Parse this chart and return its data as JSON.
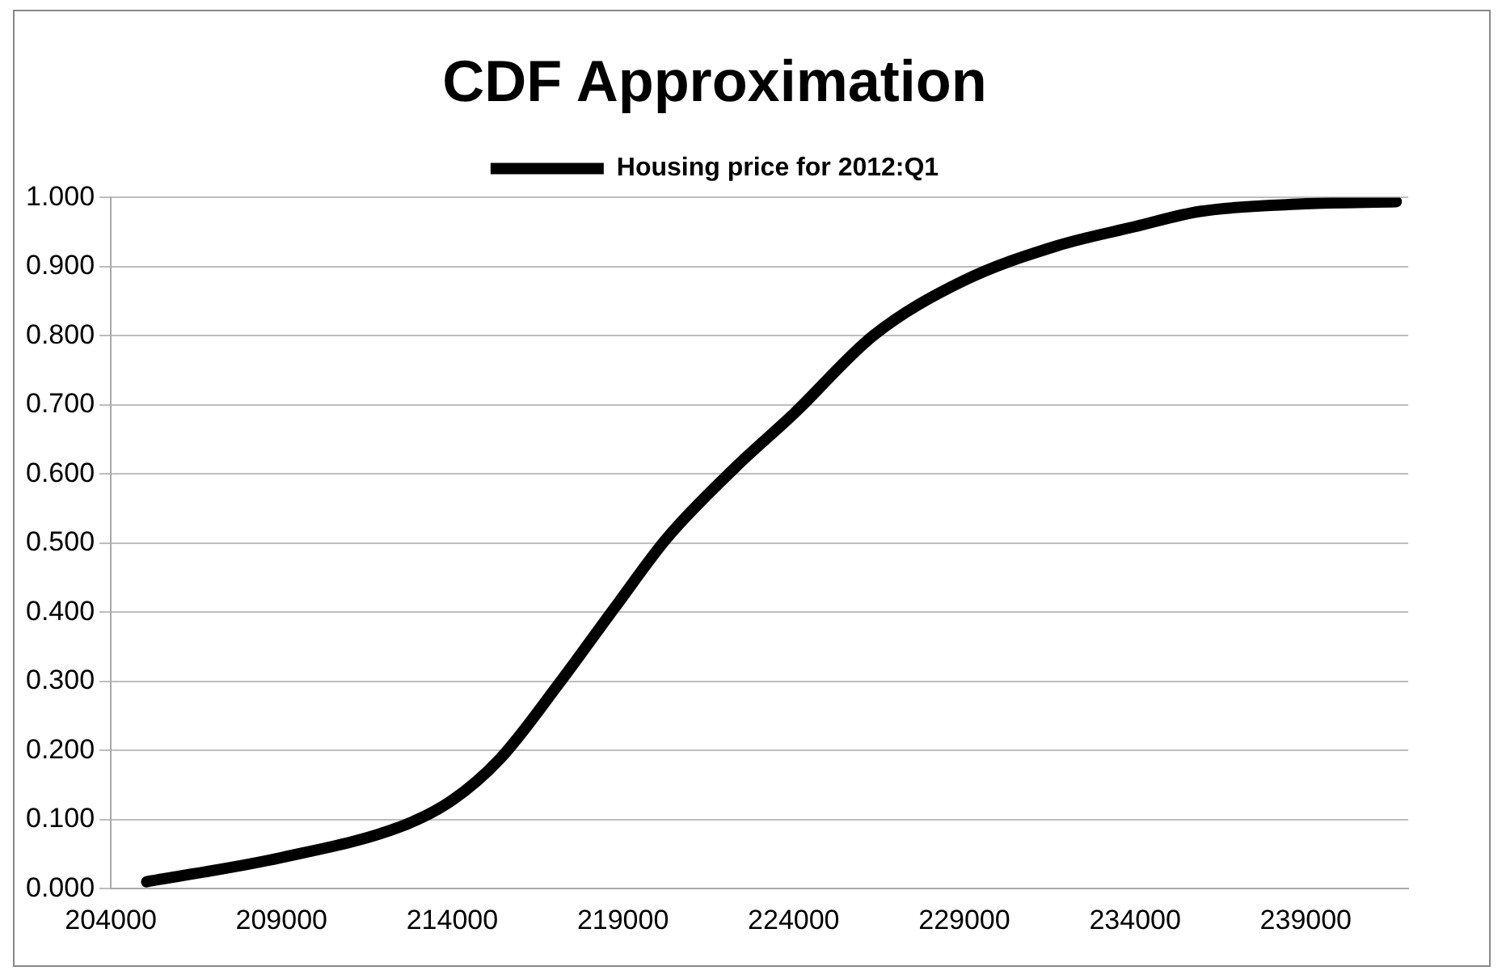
{
  "chart_data": {
    "type": "line",
    "title": "CDF Approximation",
    "legend": "top",
    "marker": "none",
    "line_style": "solid",
    "grid": "y",
    "xlim": [
      204000,
      242000
    ],
    "xticks": [
      204000,
      209000,
      214000,
      219000,
      224000,
      229000,
      234000,
      239000
    ],
    "ylim": [
      0,
      1
    ],
    "yticks": [
      {
        "value": 0,
        "label": "0.000"
      },
      {
        "value": 0.1,
        "label": "0.100"
      },
      {
        "value": 0.2,
        "label": "0.200"
      },
      {
        "value": 0.3,
        "label": "0.300"
      },
      {
        "value": 0.4,
        "label": "0.400"
      },
      {
        "value": 0.5,
        "label": "0.500"
      },
      {
        "value": 0.6,
        "label": "0.600"
      },
      {
        "value": 0.7,
        "label": "0.700"
      },
      {
        "value": 0.8,
        "label": "0.800"
      },
      {
        "value": 0.9,
        "label": "0.900"
      },
      {
        "value": 1,
        "label": "1.000"
      }
    ],
    "series": [
      {
        "name": "Housing price for 2012:Q1",
        "color": "#000000",
        "x": [
          205050,
          209000,
          212550,
          214000,
          215400,
          217100,
          218750,
          220300,
          222300,
          224000,
          226350,
          228950,
          231700,
          234000,
          235900,
          239000,
          241650
        ],
        "values": [
          0.01,
          0.045,
          0.091,
          0.128,
          0.188,
          0.295,
          0.406,
          0.508,
          0.61,
          0.687,
          0.801,
          0.879,
          0.93,
          0.958,
          0.98,
          0.991,
          0.994
        ]
      }
    ]
  }
}
